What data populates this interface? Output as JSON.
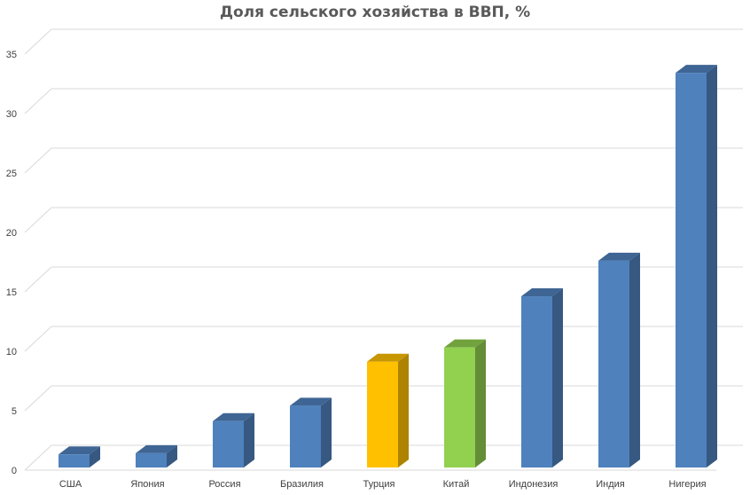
{
  "chart_data": {
    "type": "bar",
    "title": "Доля сельского хозяйства в ВВП, %",
    "xlabel": "",
    "ylabel": "",
    "categories": [
      "США",
      "Япония",
      "Россия",
      "Бразилия",
      "Турция",
      "Китай",
      "Индонезия",
      "Индия",
      "Нигерия"
    ],
    "values": [
      1.1,
      1.2,
      3.9,
      5.2,
      8.9,
      10.1,
      14.4,
      17.4,
      33.2
    ],
    "bar_colors": [
      "#4f81bd",
      "#4f81bd",
      "#4f81bd",
      "#4f81bd",
      "#ffc000",
      "#92d050",
      "#4f81bd",
      "#4f81bd",
      "#4f81bd"
    ],
    "ylim": [
      0,
      35
    ],
    "yticks": [
      0,
      5,
      10,
      15,
      20,
      25,
      30,
      35
    ],
    "grid": true,
    "legend": "none",
    "style": "3d-column"
  }
}
